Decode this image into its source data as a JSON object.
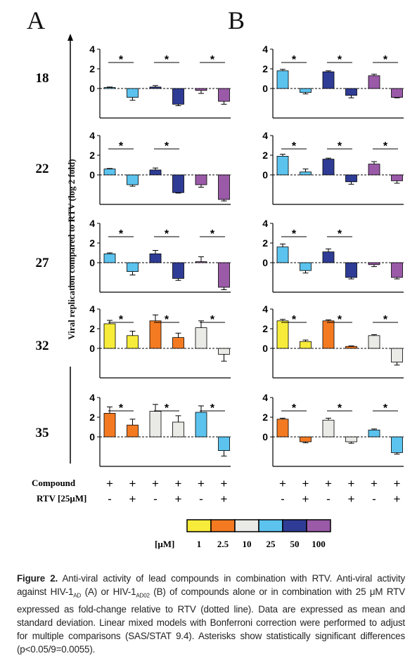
{
  "panel_letters": [
    "A",
    "B"
  ],
  "y_axis_label": "Viral replication compared to RTV (log 2 fold)",
  "row_labels": [
    "18",
    "22",
    "27",
    "32",
    "35"
  ],
  "y_ticks": [
    "0",
    "2",
    "4"
  ],
  "compound_label": "Compound",
  "rtv_label": "RTV [25μM]",
  "compound_signs": [
    "+",
    "+",
    "+",
    "+",
    "+",
    "+"
  ],
  "rtv_signs": [
    "-",
    "+",
    "-",
    "+",
    "-",
    "+"
  ],
  "significance_mark": "*",
  "legend": {
    "unit": "[μM]",
    "labels": [
      "1",
      "2.5",
      "10",
      "25",
      "50",
      "100"
    ],
    "colors": [
      "#f7ec3a",
      "#f47a22",
      "#eaeae6",
      "#5bc3ee",
      "#2f3c95",
      "#9a5aa8"
    ]
  },
  "caption": {
    "bold": "Figure 2.",
    "p1": " Anti-viral activity of lead compounds in combination with RTV. Anti-viral activity against HIV-1",
    "sub1": "AD",
    "p2": " (A) or HIV-1",
    "sub2": "AD02",
    "p3": " (B) of compounds alone or in combination with 25 μM RTV expressed as fold-change relative to RTV (dotted line). Data are expressed as mean and standard deviation. Linear mixed models with Bonferroni correction were performed to adjust for multiple comparisons (SAS/STAT 9.4). Asterisks show statistically significant differences (p<0.05/9=0.0055)."
  },
  "chart_data": {
    "type": "bar",
    "ylabel": "Viral replication compared to RTV (log 2 fold)",
    "ylim": [
      -3,
      4
    ],
    "reference_line": 0,
    "panels": [
      {
        "name": "A",
        "rows": [
          {
            "label": "18",
            "colors": [
              "#5bc3ee",
              "#5bc3ee",
              "#2f3c95",
              "#2f3c95",
              "#9a5aa8",
              "#9a5aa8"
            ],
            "values": [
              0.1,
              -0.9,
              0.15,
              -1.6,
              -0.2,
              -1.3
            ],
            "errors": [
              0.05,
              0.3,
              0.15,
              0.15,
              0.3,
              0.3
            ],
            "sig_pairs": [
              0,
              1,
              2
            ]
          },
          {
            "label": "22",
            "colors": [
              "#5bc3ee",
              "#5bc3ee",
              "#2f3c95",
              "#2f3c95",
              "#9a5aa8",
              "#9a5aa8"
            ],
            "values": [
              0.6,
              -1.0,
              0.5,
              -1.8,
              -1.0,
              -2.5
            ],
            "errors": [
              0.05,
              0.15,
              0.2,
              0.05,
              0.25,
              0.15
            ],
            "sig_pairs": [
              0,
              1
            ]
          },
          {
            "label": "27",
            "colors": [
              "#5bc3ee",
              "#5bc3ee",
              "#2f3c95",
              "#2f3c95",
              "#9a5aa8",
              "#9a5aa8"
            ],
            "values": [
              0.9,
              -0.9,
              0.9,
              -1.6,
              0.1,
              -2.5
            ],
            "errors": [
              0.1,
              0.35,
              0.35,
              0.2,
              0.5,
              0.25
            ],
            "sig_pairs": [
              0,
              1,
              2
            ]
          },
          {
            "label": "32",
            "colors": [
              "#f7ec3a",
              "#f7ec3a",
              "#f47a22",
              "#f47a22",
              "#eaeae6",
              "#eaeae6"
            ],
            "values": [
              2.5,
              1.3,
              2.8,
              1.1,
              2.1,
              -0.6
            ],
            "errors": [
              0.35,
              0.45,
              0.6,
              0.45,
              0.7,
              0.7
            ],
            "sig_pairs": [
              0,
              1,
              2
            ]
          },
          {
            "label": "35",
            "colors": [
              "#f47a22",
              "#f47a22",
              "#eaeae6",
              "#eaeae6",
              "#5bc3ee",
              "#5bc3ee"
            ],
            "values": [
              2.4,
              1.2,
              2.6,
              1.5,
              2.5,
              -1.4
            ],
            "errors": [
              0.65,
              0.6,
              0.7,
              0.65,
              0.65,
              0.55
            ],
            "sig_pairs": [
              0,
              1,
              2
            ]
          }
        ]
      },
      {
        "name": "B",
        "rows": [
          {
            "label": "18",
            "colors": [
              "#5bc3ee",
              "#5bc3ee",
              "#2f3c95",
              "#2f3c95",
              "#9a5aa8",
              "#9a5aa8"
            ],
            "values": [
              1.8,
              -0.4,
              1.7,
              -0.7,
              1.3,
              -0.9
            ],
            "errors": [
              0.15,
              0.15,
              0.1,
              0.25,
              0.15,
              0.05
            ],
            "sig_pairs": [
              0,
              1,
              2
            ]
          },
          {
            "label": "22",
            "colors": [
              "#5bc3ee",
              "#5bc3ee",
              "#2f3c95",
              "#2f3c95",
              "#9a5aa8",
              "#9a5aa8"
            ],
            "values": [
              1.9,
              0.3,
              1.6,
              -0.7,
              1.1,
              -0.6
            ],
            "errors": [
              0.2,
              0.3,
              0.1,
              0.25,
              0.25,
              0.25
            ],
            "sig_pairs": [
              0,
              1,
              2
            ]
          },
          {
            "label": "27",
            "colors": [
              "#5bc3ee",
              "#5bc3ee",
              "#2f3c95",
              "#2f3c95",
              "#9a5aa8",
              "#9a5aa8"
            ],
            "values": [
              1.6,
              -0.8,
              1.1,
              -1.5,
              -0.2,
              -1.5
            ],
            "errors": [
              0.3,
              0.25,
              0.3,
              0.15,
              0.2,
              0.15
            ],
            "sig_pairs": [
              0,
              1
            ]
          },
          {
            "label": "32",
            "colors": [
              "#f7ec3a",
              "#f7ec3a",
              "#f47a22",
              "#f47a22",
              "#eaeae6",
              "#eaeae6"
            ],
            "values": [
              2.8,
              0.7,
              2.8,
              0.2,
              1.3,
              -1.4
            ],
            "errors": [
              0.15,
              0.15,
              0.1,
              0.05,
              0.1,
              0.3
            ],
            "sig_pairs": [
              0,
              1,
              2
            ]
          },
          {
            "label": "35",
            "colors": [
              "#f47a22",
              "#f47a22",
              "#eaeae6",
              "#eaeae6",
              "#5bc3ee",
              "#5bc3ee"
            ],
            "values": [
              1.8,
              -0.5,
              1.7,
              -0.5,
              0.7,
              -1.6
            ],
            "errors": [
              0.1,
              0.1,
              0.2,
              0.15,
              0.1,
              0.15
            ],
            "sig_pairs": [
              0,
              1,
              2
            ]
          }
        ]
      }
    ]
  }
}
